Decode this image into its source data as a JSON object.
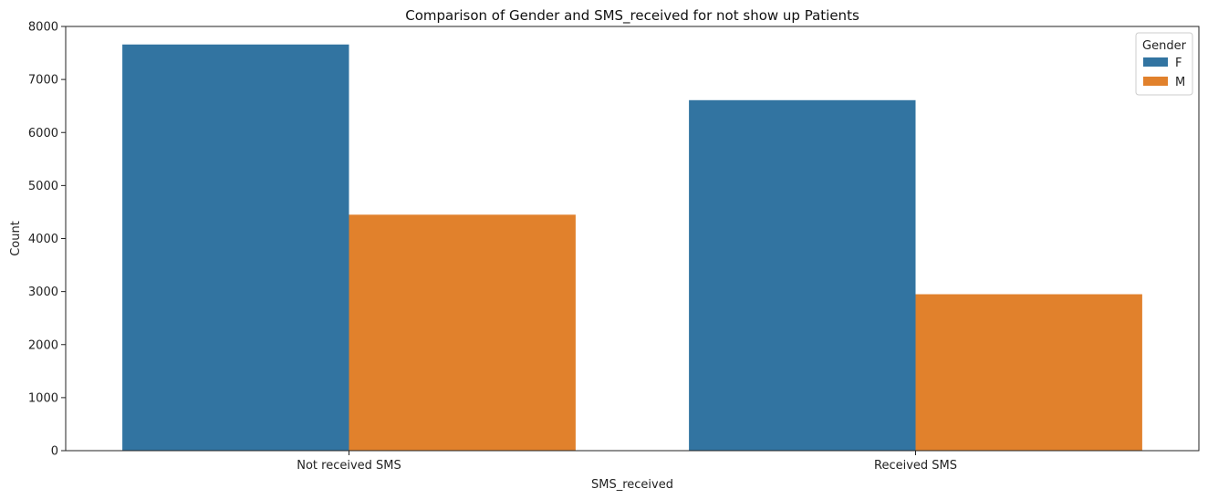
{
  "chart_data": {
    "type": "bar",
    "title": "Comparison of Gender and SMS_received for not show up Patients",
    "xlabel": "SMS_received",
    "ylabel": "Count",
    "categories": [
      "Not received SMS",
      "Received SMS"
    ],
    "series": [
      {
        "name": "F",
        "color": "#3274a1",
        "values": [
          7660,
          6610
        ]
      },
      {
        "name": "M",
        "color": "#e1812c",
        "values": [
          4450,
          2950
        ]
      }
    ],
    "ylim": [
      0,
      8000
    ],
    "yticks": [
      0,
      1000,
      2000,
      3000,
      4000,
      5000,
      6000,
      7000,
      8000
    ],
    "grid": false,
    "legend": {
      "title": "Gender",
      "placement": "top-right"
    }
  }
}
